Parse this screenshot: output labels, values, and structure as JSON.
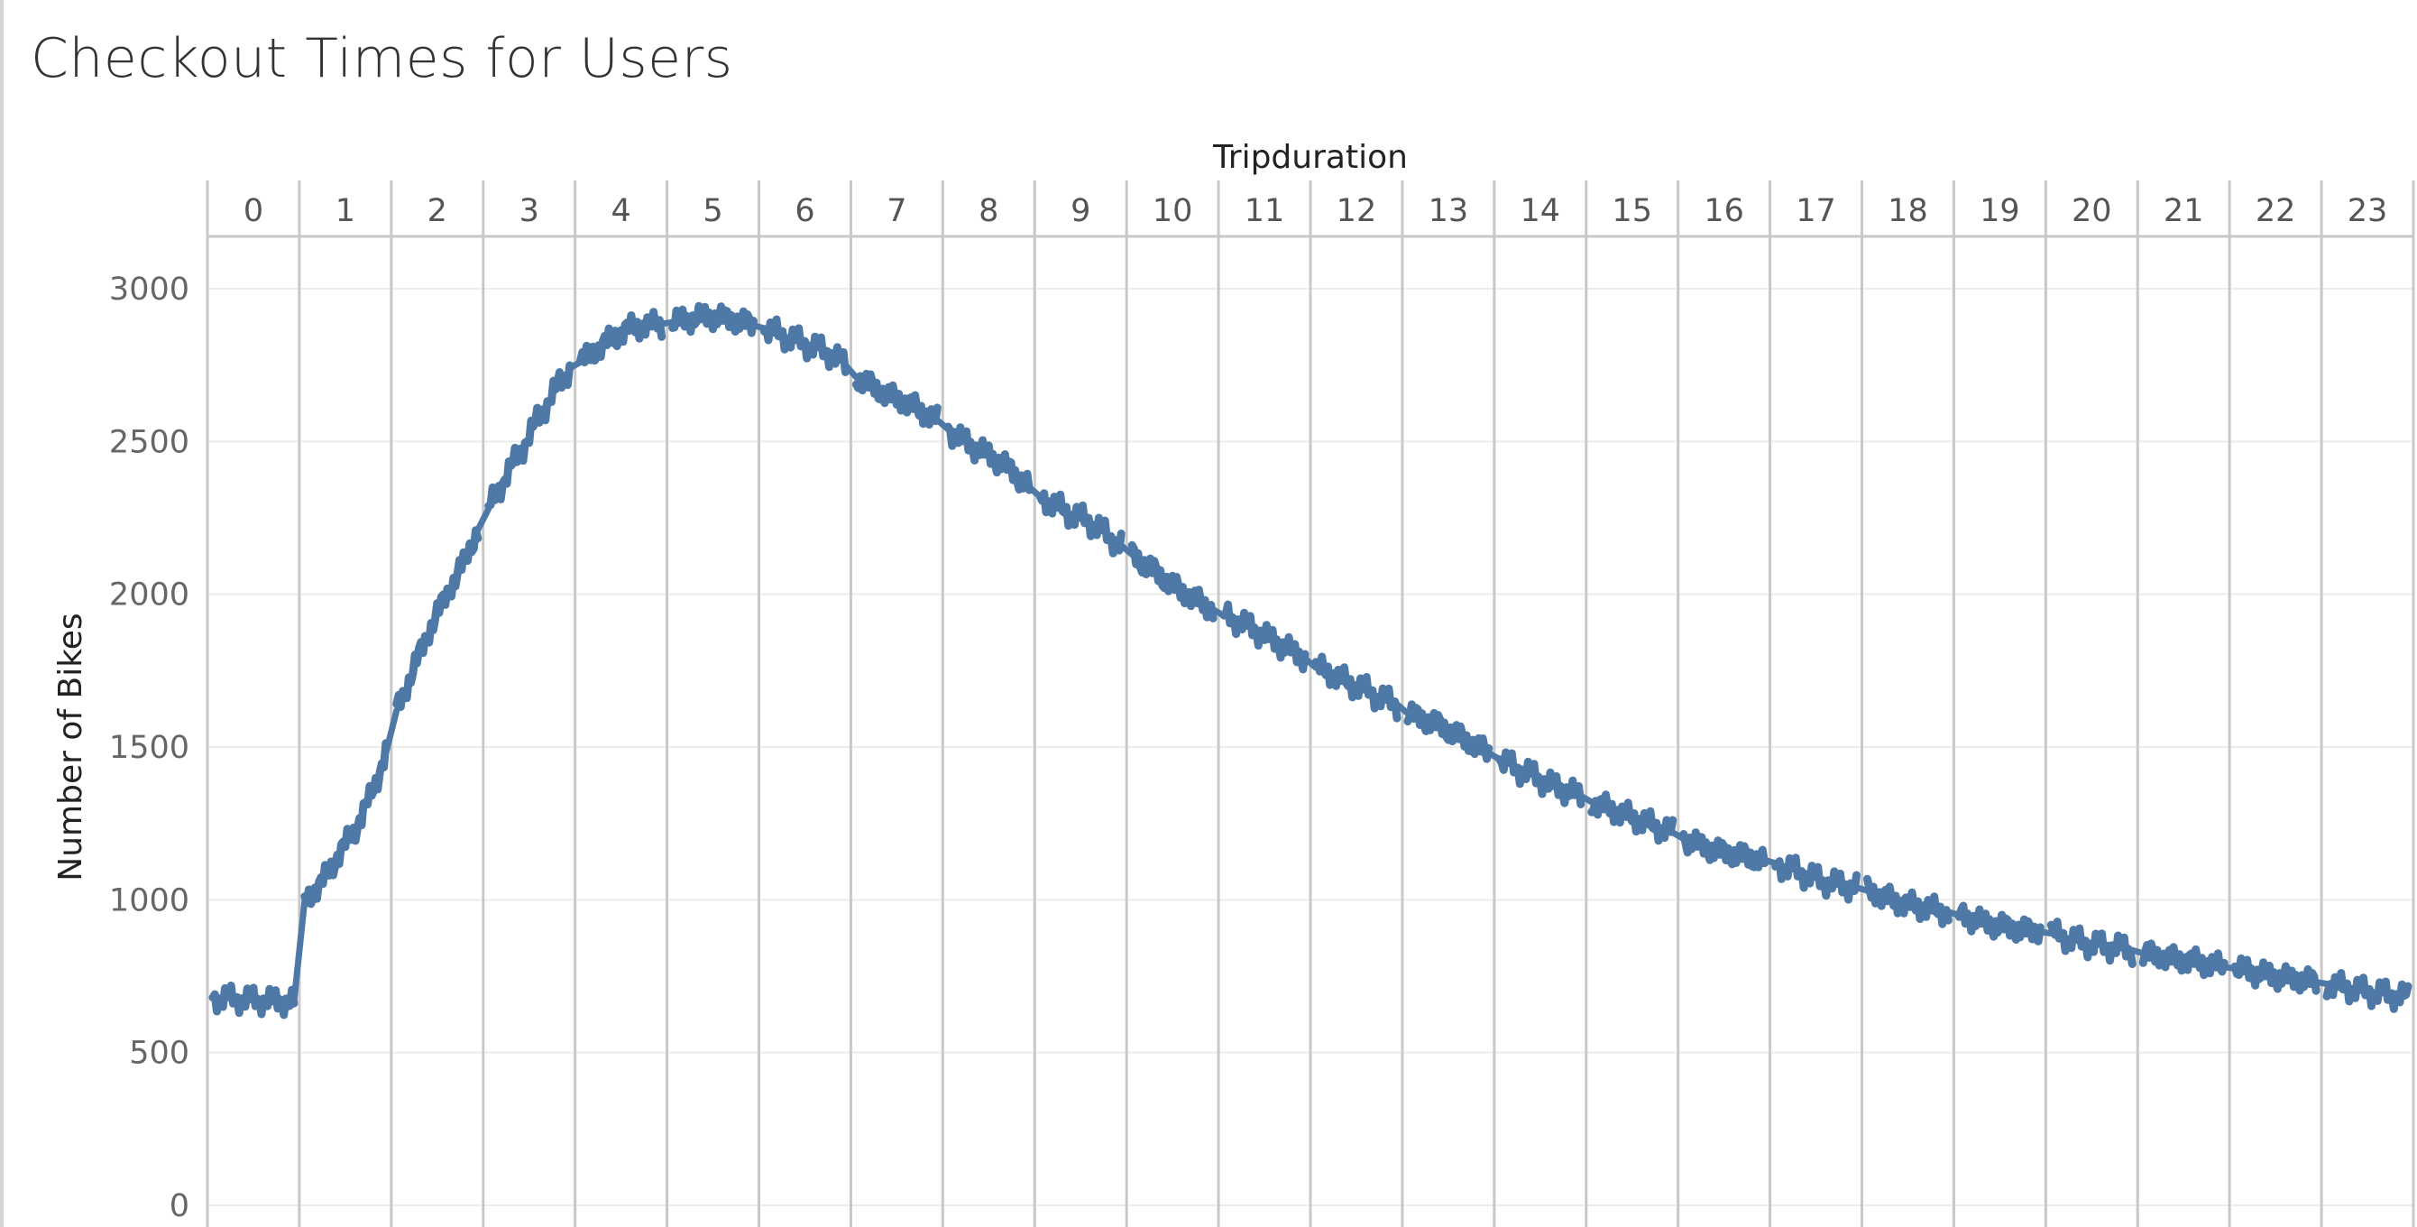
{
  "chart_data": {
    "type": "line",
    "title": "Checkout Times for Users",
    "column_title": "Tripduration",
    "ylabel": "Number of Bikes",
    "panels": [
      "0",
      "1",
      "2",
      "3",
      "4",
      "5",
      "6",
      "7",
      "8",
      "9",
      "10",
      "11",
      "12",
      "13",
      "14",
      "15",
      "16",
      "17",
      "18",
      "19",
      "20",
      "21",
      "22",
      "23"
    ],
    "ylim": [
      0,
      3000
    ],
    "yticks": [
      {
        "value": 0,
        "label": "0"
      },
      {
        "value": 500,
        "label": "500"
      },
      {
        "value": 1000,
        "label": "1000"
      },
      {
        "value": 1500,
        "label": "1500"
      },
      {
        "value": 2000,
        "label": "2000"
      },
      {
        "value": 2500,
        "label": "2500"
      },
      {
        "value": 3000,
        "label": "3000"
      }
    ],
    "horizontal_grid": true,
    "series": [
      {
        "values": [
          [
            680,
            665
          ],
          [
            1000,
            1050,
            1140,
            1220,
            1330,
            1480
          ],
          [
            1620,
            1750,
            1880,
            1990,
            2090,
            2210
          ],
          [
            2280,
            2380,
            2470,
            2570,
            2660,
            2740
          ],
          [
            2760,
            2800,
            2840,
            2870,
            2880,
            2885
          ],
          [
            2890,
            2900,
            2910,
            2905,
            2895,
            2880
          ],
          [
            2870,
            2850,
            2830,
            2810,
            2790,
            2750
          ],
          [
            2710,
            2680,
            2650,
            2630,
            2600,
            2570
          ],
          [
            2540,
            2500,
            2470,
            2440,
            2400,
            2350
          ],
          [
            2320,
            2290,
            2260,
            2240,
            2200,
            2160
          ],
          [
            2130,
            2090,
            2050,
            2010,
            1980,
            1950
          ],
          [
            1930,
            1910,
            1880,
            1850,
            1820,
            1790
          ],
          [
            1760,
            1740,
            1710,
            1690,
            1660,
            1640
          ],
          [
            1610,
            1590,
            1570,
            1540,
            1510,
            1480
          ],
          [
            1460,
            1430,
            1410,
            1380,
            1360,
            1340
          ],
          [
            1320,
            1300,
            1280,
            1260,
            1240,
            1220
          ],
          [
            1200,
            1180,
            1160,
            1150,
            1140,
            1130
          ],
          [
            1120,
            1100,
            1080,
            1060,
            1050,
            1040
          ],
          [
            1030,
            1010,
            990,
            980,
            970,
            960
          ],
          [
            950,
            935,
            920,
            910,
            900,
            895
          ],
          [
            890,
            875,
            860,
            850,
            845,
            835
          ],
          [
            825,
            815,
            805,
            800,
            790,
            780
          ],
          [
            775,
            765,
            755,
            745,
            740,
            730
          ],
          [
            725,
            715,
            705,
            695,
            690,
            680
          ]
        ],
        "color": "#4e79a7"
      }
    ]
  },
  "colors": {
    "line": "#4e79a7",
    "panel_divider": "#c8c8c8",
    "gridline": "#ececec",
    "text_dark": "#222222",
    "text_muted": "#666666"
  }
}
